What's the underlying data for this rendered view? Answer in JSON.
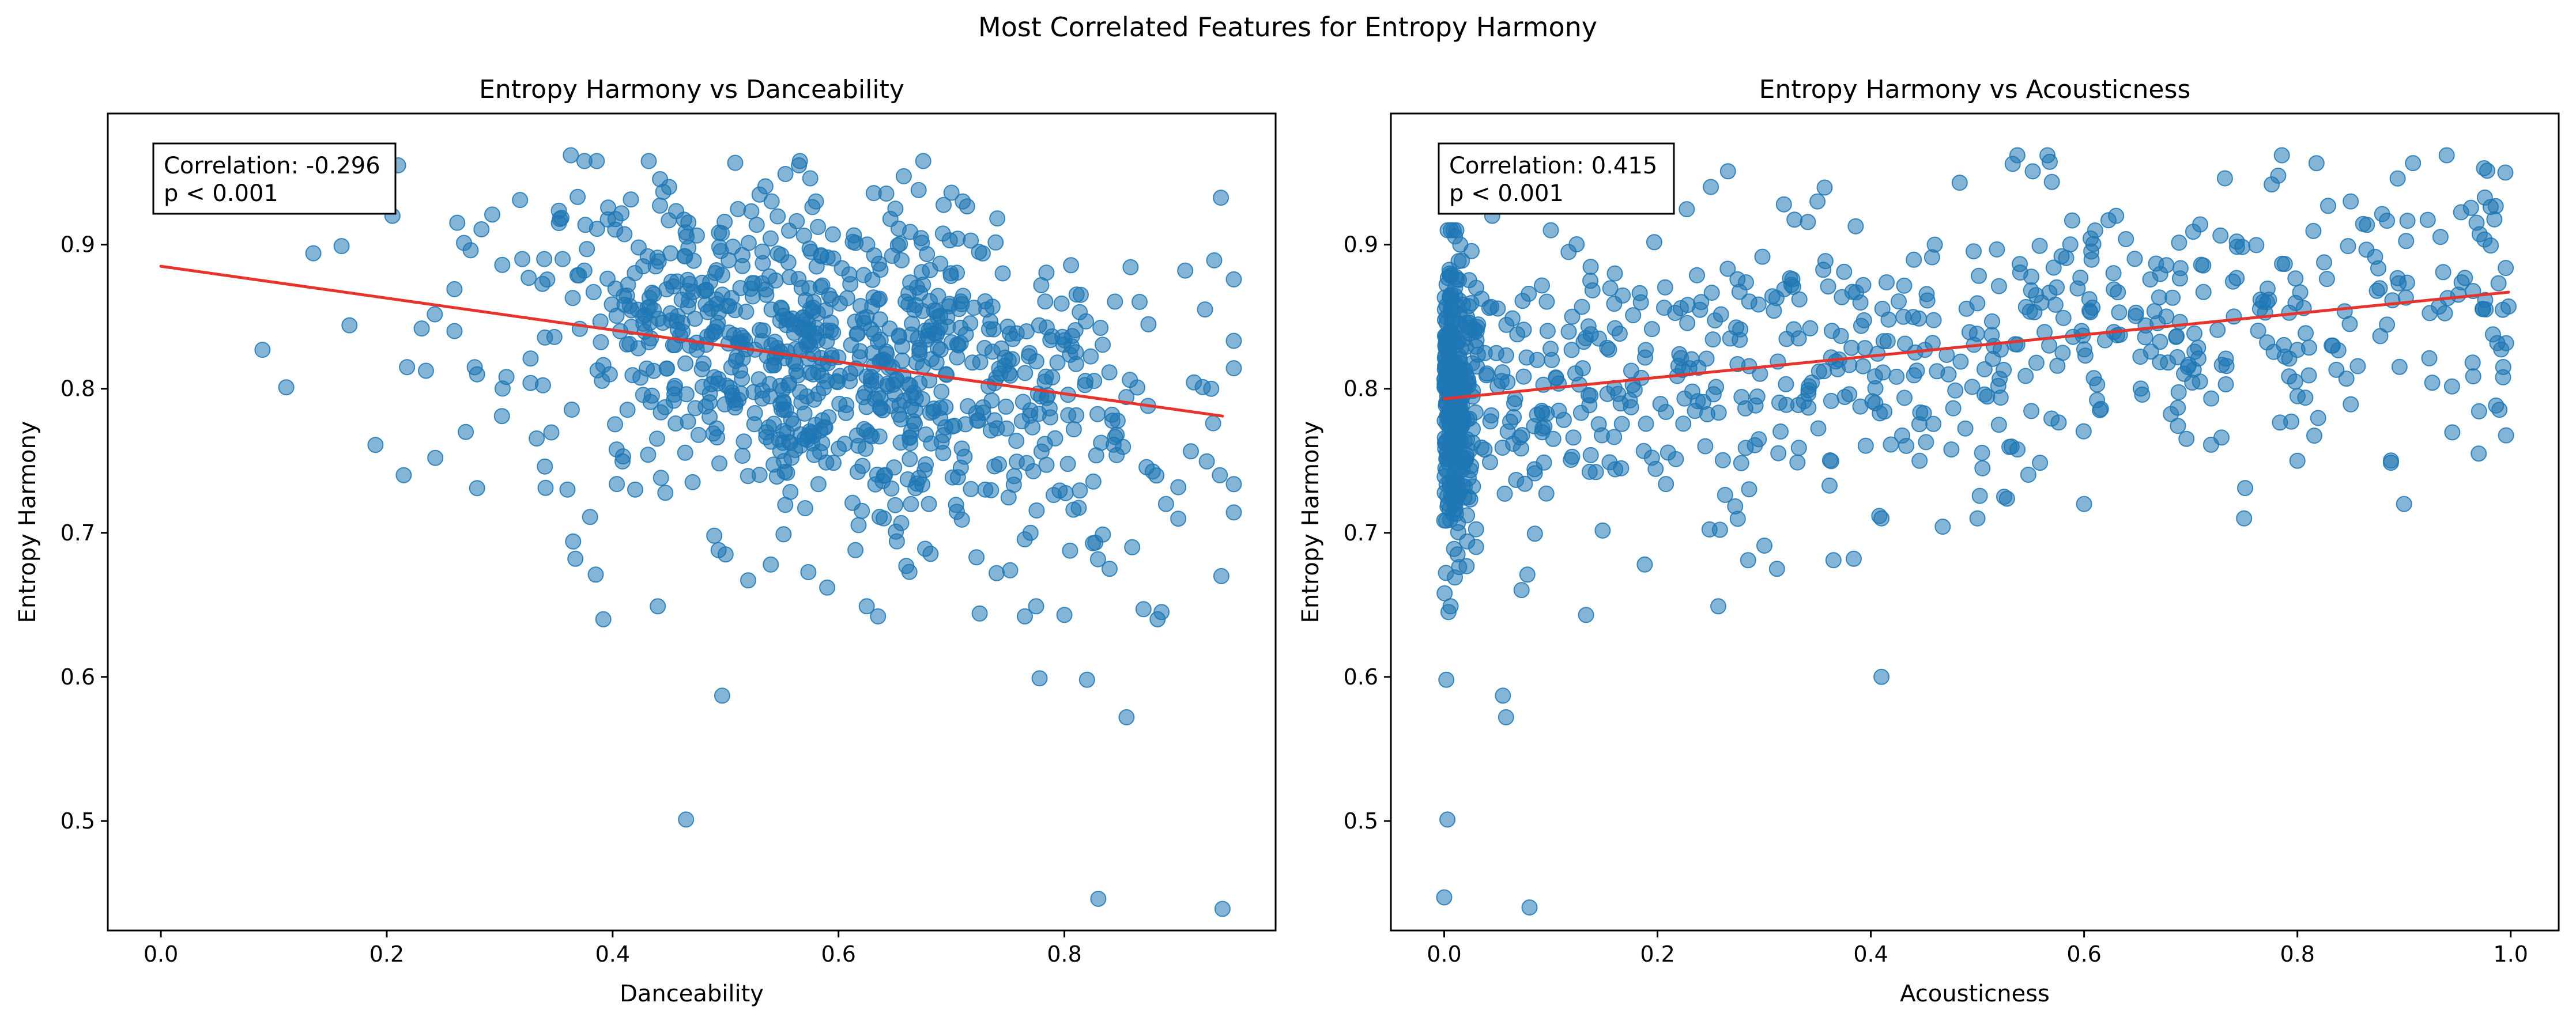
{
  "figure": {
    "suptitle": "Most Correlated Features for Entropy Harmony"
  },
  "chart_data": [
    {
      "type": "scatter",
      "title": "Entropy Harmony vs Danceability",
      "xlabel": "Danceability",
      "ylabel": "Entropy Harmony",
      "xlim": [
        -0.047,
        0.987
      ],
      "ylim": [
        0.424,
        0.991
      ],
      "xticks": [
        "0.0",
        "0.2",
        "0.4",
        "0.6",
        "0.8"
      ],
      "yticks": [
        "0.5",
        "0.6",
        "0.7",
        "0.8",
        "0.9"
      ],
      "grid": false,
      "annotation": {
        "lines": [
          "Correlation: -0.296",
          "p < 0.001"
        ],
        "position": "top-left"
      },
      "trend": {
        "x": [
          0.0,
          0.94
        ],
        "y": [
          0.885,
          0.781
        ],
        "color": "#e8322c"
      },
      "point_color": "#1f77b4",
      "series": [
        {
          "x": [
            0.0,
            0.09,
            0.111,
            0.135,
            0.16,
            0.167,
            0.19,
            0.205,
            0.21,
            0.215,
            0.218,
            0.243,
            0.28,
            0.302,
            0.318,
            0.34,
            0.363,
            0.365,
            0.367,
            0.375,
            0.38,
            0.385,
            0.44,
            0.465,
            0.49,
            0.497,
            0.5,
            0.52,
            0.54,
            0.553,
            0.565,
            0.575,
            0.59,
            0.615,
            0.625,
            0.635,
            0.66,
            0.675,
            0.7,
            0.725,
            0.74,
            0.752,
            0.765,
            0.775,
            0.778,
            0.8,
            0.82,
            0.83,
            0.84,
            0.855,
            0.87,
            0.886,
            0.907,
            0.93,
            0.94,
            0.32,
            0.45,
            0.58,
            0.71,
            0.68,
            0.77,
            0.73,
            0.86,
            0.89,
            0.36,
            0.26,
            0.28,
            0.42,
            0.64,
            0.27
          ],
          "y": [
            0.938,
            0.827,
            0.801,
            0.894,
            0.899,
            0.844,
            0.761,
            0.92,
            0.955,
            0.74,
            0.815,
            0.752,
            0.731,
            0.781,
            0.931,
            0.746,
            0.962,
            0.694,
            0.682,
            0.958,
            0.711,
            0.671,
            0.649,
            0.501,
            0.698,
            0.587,
            0.685,
            0.667,
            0.678,
            0.949,
            0.955,
            0.946,
            0.662,
            0.688,
            0.649,
            0.642,
            0.677,
            0.958,
            0.936,
            0.644,
            0.672,
            0.674,
            0.642,
            0.649,
            0.599,
            0.643,
            0.598,
            0.446,
            0.675,
            0.572,
            0.647,
            0.645,
            0.882,
            0.8,
            0.439,
            0.89,
            0.94,
            0.93,
            0.93,
            0.72,
            0.7,
            0.73,
            0.69,
            0.72,
            0.73,
            0.84,
            0.81,
            0.73,
            0.71,
            0.77
          ]
        }
      ]
    },
    {
      "type": "scatter",
      "title": "Entropy Harmony vs Acousticness",
      "xlabel": "Acousticness",
      "ylabel": "Entropy Harmony",
      "xlim": [
        -0.05,
        1.045
      ],
      "ylim": [
        0.424,
        0.991
      ],
      "xticks": [
        "0.0",
        "0.2",
        "0.4",
        "0.6",
        "0.8",
        "1.0"
      ],
      "yticks": [
        "0.5",
        "0.6",
        "0.7",
        "0.8",
        "0.9"
      ],
      "grid": false,
      "annotation": {
        "lines": [
          "Correlation: 0.415",
          "p < 0.001"
        ],
        "position": "top-left"
      },
      "trend": {
        "x": [
          0.0,
          0.998
        ],
        "y": [
          0.793,
          0.867
        ],
        "color": "#e8322c"
      },
      "point_color": "#1f77b4",
      "series": [
        {
          "x": [
            0.0,
            0.002,
            0.003,
            0.004,
            0.006,
            0.01,
            0.055,
            0.058,
            0.08,
            0.078,
            0.133,
            0.188,
            0.257,
            0.285,
            0.41,
            0.312,
            0.365,
            0.384,
            0.525,
            0.533,
            0.732,
            0.94,
            0.975,
            0.97,
            0.5,
            0.6,
            0.75,
            0.8,
            0.9,
            0.41,
            0.005,
            0.015,
            0.03,
            0.045,
            0.07,
            0.1,
            0.12,
            0.16,
            0.25,
            0.35,
            0.46,
            0.63,
            0.85,
            0.995
          ],
          "y": [
            0.447,
            0.598,
            0.501,
            0.645,
            0.649,
            0.669,
            0.587,
            0.572,
            0.44,
            0.671,
            0.643,
            0.678,
            0.649,
            0.681,
            0.6,
            0.675,
            0.681,
            0.682,
            0.725,
            0.956,
            0.946,
            0.962,
            0.953,
            0.755,
            0.71,
            0.72,
            0.71,
            0.75,
            0.72,
            0.71,
            0.88,
            0.9,
            0.87,
            0.92,
            0.93,
            0.91,
            0.85,
            0.88,
            0.94,
            0.93,
            0.9,
            0.92,
            0.93,
            0.95
          ]
        }
      ]
    }
  ]
}
